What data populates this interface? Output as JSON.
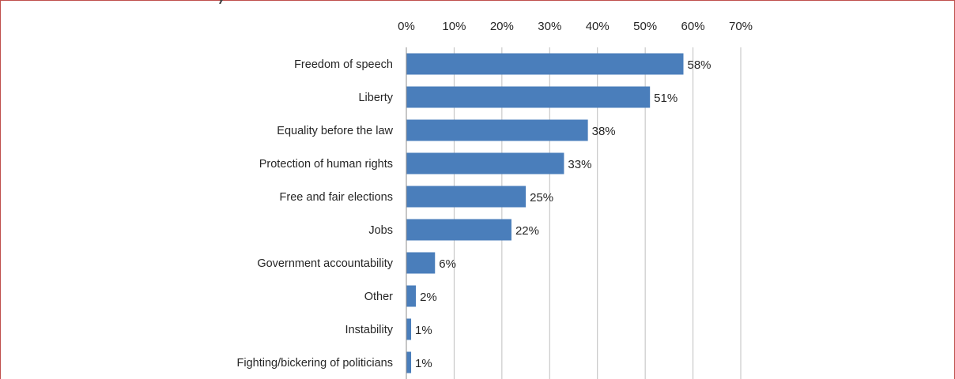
{
  "chart_data": {
    "type": "bar",
    "orientation": "horizontal",
    "title": "",
    "xlabel": "",
    "ylabel": "",
    "categories": [
      "Freedom of speech",
      "Liberty",
      "Equality before the law",
      "Protection of human rights",
      "Free and fair elections",
      "Jobs",
      "Government accountability",
      "Other",
      "Instability",
      "Fighting/bickering of politicians"
    ],
    "values": [
      58,
      51,
      38,
      33,
      25,
      22,
      6,
      2,
      1,
      1
    ],
    "value_labels": [
      "58%",
      "51%",
      "38%",
      "33%",
      "25%",
      "22%",
      "6%",
      "2%",
      "1%",
      "1%"
    ],
    "xlim": [
      0,
      70
    ],
    "x_ticks": [
      0,
      10,
      20,
      30,
      40,
      50,
      60,
      70
    ],
    "x_tick_labels": [
      "0%",
      "10%",
      "20%",
      "30%",
      "40%",
      "50%",
      "60%",
      "70%"
    ],
    "x_axis_position": "top",
    "grid": "vertical",
    "legend": "none",
    "bar_color": "#4a7ebb",
    "frame_color": "#c0504d"
  }
}
